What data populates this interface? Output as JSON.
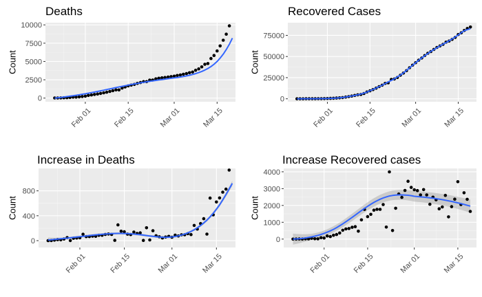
{
  "colors": {
    "panel_bg": "#ebebeb",
    "grid_major": "#ffffff",
    "grid_minor": "#f5f5f5",
    "point": "#000000",
    "smooth": "#3366ff",
    "ribbon": "#999999"
  },
  "chart_data": [
    {
      "type": "scatter",
      "title": "Deaths",
      "xlabel": "",
      "ylabel": "Count",
      "x_type": "date",
      "x_ticks": [
        "2020-02-01",
        "2020-02-15",
        "2020-03-01",
        "2020-03-15"
      ],
      "x_tick_labels": [
        "Feb 01",
        "Feb 15",
        "Mar 01",
        "Mar 15"
      ],
      "xlim": [
        "2020-01-19",
        "2020-03-21"
      ],
      "y_ticks": [
        0,
        2500,
        5000,
        7500,
        10000
      ],
      "ylim": [
        -500,
        10300
      ],
      "grid": true,
      "smooth": true,
      "x": [
        "2020-01-22",
        "2020-01-23",
        "2020-01-24",
        "2020-01-25",
        "2020-01-26",
        "2020-01-27",
        "2020-01-28",
        "2020-01-29",
        "2020-01-30",
        "2020-01-31",
        "2020-02-01",
        "2020-02-02",
        "2020-02-03",
        "2020-02-04",
        "2020-02-05",
        "2020-02-06",
        "2020-02-07",
        "2020-02-08",
        "2020-02-09",
        "2020-02-10",
        "2020-02-11",
        "2020-02-12",
        "2020-02-13",
        "2020-02-14",
        "2020-02-15",
        "2020-02-16",
        "2020-02-17",
        "2020-02-18",
        "2020-02-19",
        "2020-02-20",
        "2020-02-21",
        "2020-02-22",
        "2020-02-23",
        "2020-02-24",
        "2020-02-25",
        "2020-02-26",
        "2020-02-27",
        "2020-02-28",
        "2020-02-29",
        "2020-03-01",
        "2020-03-02",
        "2020-03-03",
        "2020-03-04",
        "2020-03-05",
        "2020-03-06",
        "2020-03-07",
        "2020-03-08",
        "2020-03-09",
        "2020-03-10",
        "2020-03-11",
        "2020-03-12",
        "2020-03-13",
        "2020-03-14",
        "2020-03-15",
        "2020-03-16",
        "2020-03-17",
        "2020-03-18",
        "2020-03-19"
      ],
      "y": [
        17,
        18,
        26,
        42,
        56,
        82,
        131,
        133,
        171,
        213,
        259,
        362,
        426,
        492,
        564,
        634,
        719,
        806,
        906,
        1013,
        1113,
        1118,
        1371,
        1523,
        1666,
        1770,
        1868,
        2007,
        2122,
        2247,
        2251,
        2458,
        2469,
        2629,
        2708,
        2770,
        2814,
        2872,
        2941,
        2996,
        3085,
        3160,
        3254,
        3348,
        3460,
        3558,
        3802,
        3988,
        4262,
        4615,
        4720,
        5404,
        5819,
        6440,
        7126,
        7905,
        8733,
        9867
      ],
      "smooth_y": [
        0,
        45,
        95,
        145,
        200,
        260,
        320,
        385,
        450,
        520,
        590,
        665,
        745,
        825,
        910,
        995,
        1080,
        1170,
        1255,
        1345,
        1435,
        1520,
        1605,
        1690,
        1775,
        1855,
        1935,
        2010,
        2085,
        2155,
        2225,
        2290,
        2355,
        2415,
        2475,
        2535,
        2590,
        2645,
        2700,
        2755,
        2815,
        2880,
        2950,
        3030,
        3120,
        3225,
        3345,
        3480,
        3640,
        3830,
        4050,
        4310,
        4620,
        5000,
        5460,
        6000,
        6630,
        7350,
        8200
      ]
    },
    {
      "type": "scatter",
      "title": "Recovered Cases",
      "xlabel": "",
      "ylabel": "Count",
      "x_type": "date",
      "x_ticks": [
        "2020-02-01",
        "2020-02-15",
        "2020-03-01",
        "2020-03-15"
      ],
      "x_tick_labels": [
        "Feb 01",
        "Feb 15",
        "Mar 01",
        "Mar 15"
      ],
      "xlim": [
        "2020-01-19",
        "2020-03-21"
      ],
      "y_ticks": [
        0,
        25000,
        50000,
        75000
      ],
      "ylim": [
        -3500,
        90000
      ],
      "grid": true,
      "smooth": true,
      "x": [
        "2020-01-22",
        "2020-01-23",
        "2020-01-24",
        "2020-01-25",
        "2020-01-26",
        "2020-01-27",
        "2020-01-28",
        "2020-01-29",
        "2020-01-30",
        "2020-01-31",
        "2020-02-01",
        "2020-02-02",
        "2020-02-03",
        "2020-02-04",
        "2020-02-05",
        "2020-02-06",
        "2020-02-07",
        "2020-02-08",
        "2020-02-09",
        "2020-02-10",
        "2020-02-11",
        "2020-02-12",
        "2020-02-13",
        "2020-02-14",
        "2020-02-15",
        "2020-02-16",
        "2020-02-17",
        "2020-02-18",
        "2020-02-19",
        "2020-02-20",
        "2020-02-21",
        "2020-02-22",
        "2020-02-23",
        "2020-02-24",
        "2020-02-25",
        "2020-02-26",
        "2020-02-27",
        "2020-02-28",
        "2020-02-29",
        "2020-03-01",
        "2020-03-02",
        "2020-03-03",
        "2020-03-04",
        "2020-03-05",
        "2020-03-06",
        "2020-03-07",
        "2020-03-08",
        "2020-03-09",
        "2020-03-10",
        "2020-03-11",
        "2020-03-12",
        "2020-03-13",
        "2020-03-14",
        "2020-03-15",
        "2020-03-16",
        "2020-03-17",
        "2020-03-18",
        "2020-03-19"
      ],
      "y": [
        28,
        30,
        36,
        39,
        52,
        61,
        107,
        126,
        143,
        222,
        284,
        472,
        623,
        852,
        1124,
        1487,
        2011,
        2616,
        3244,
        3946,
        4683,
        5150,
        6295,
        8058,
        9395,
        10865,
        12583,
        14352,
        16121,
        18177,
        18890,
        22886,
        23394,
        25227,
        27905,
        30384,
        33277,
        36711,
        39782,
        42716,
        45602,
        48228,
        51170,
        53796,
        55865,
        58358,
        60694,
        62494,
        64404,
        67003,
        68324,
        70251,
        72624,
        76034,
        78088,
        80840,
        83207,
        84854
      ]
    },
    {
      "type": "scatter",
      "title": "Increase in Deaths",
      "xlabel": "",
      "ylabel": "Count",
      "x_type": "date",
      "x_ticks": [
        "2020-02-01",
        "2020-02-15",
        "2020-03-01",
        "2020-03-15"
      ],
      "x_tick_labels": [
        "Feb 01",
        "Feb 15",
        "Mar 01",
        "Mar 15"
      ],
      "xlim": [
        "2020-01-19",
        "2020-03-21"
      ],
      "y_ticks": [
        0,
        400,
        800
      ],
      "ylim": [
        -110,
        1160
      ],
      "grid": true,
      "smooth": true,
      "ribbon": true,
      "x": [
        "2020-01-22",
        "2020-01-23",
        "2020-01-24",
        "2020-01-25",
        "2020-01-26",
        "2020-01-27",
        "2020-01-28",
        "2020-01-29",
        "2020-01-30",
        "2020-01-31",
        "2020-02-01",
        "2020-02-02",
        "2020-02-03",
        "2020-02-04",
        "2020-02-05",
        "2020-02-06",
        "2020-02-07",
        "2020-02-08",
        "2020-02-09",
        "2020-02-10",
        "2020-02-11",
        "2020-02-12",
        "2020-02-13",
        "2020-02-14",
        "2020-02-15",
        "2020-02-16",
        "2020-02-17",
        "2020-02-18",
        "2020-02-19",
        "2020-02-20",
        "2020-02-21",
        "2020-02-22",
        "2020-02-23",
        "2020-02-24",
        "2020-02-25",
        "2020-02-26",
        "2020-02-27",
        "2020-02-28",
        "2020-02-29",
        "2020-03-01",
        "2020-03-02",
        "2020-03-03",
        "2020-03-04",
        "2020-03-05",
        "2020-03-06",
        "2020-03-07",
        "2020-03-08",
        "2020-03-09",
        "2020-03-10",
        "2020-03-11",
        "2020-03-12",
        "2020-03-13",
        "2020-03-14",
        "2020-03-15",
        "2020-03-16",
        "2020-03-17",
        "2020-03-18",
        "2020-03-19"
      ],
      "y": [
        0,
        1,
        8,
        16,
        14,
        26,
        49,
        2,
        38,
        42,
        46,
        103,
        64,
        66,
        72,
        70,
        85,
        87,
        100,
        107,
        100,
        5,
        253,
        152,
        143,
        104,
        98,
        139,
        115,
        125,
        4,
        207,
        11,
        160,
        79,
        62,
        44,
        58,
        69,
        55,
        89,
        75,
        94,
        94,
        112,
        98,
        244,
        186,
        274,
        353,
        105,
        684,
        415,
        621,
        686,
        779,
        828,
        1134
      ],
      "smooth_y": [
        10,
        15,
        20,
        25,
        30,
        35,
        40,
        46,
        52,
        58,
        64,
        70,
        76,
        82,
        88,
        93,
        98,
        102,
        106,
        110,
        113,
        115,
        116,
        116,
        115,
        113,
        110,
        106,
        101,
        95,
        89,
        82,
        75,
        69,
        63,
        59,
        56,
        55,
        56,
        60,
        67,
        77,
        90,
        106,
        125,
        148,
        175,
        207,
        243,
        284,
        330,
        382,
        440,
        505,
        575,
        655,
        740,
        830,
        920
      ],
      "band_half": [
        40,
        33,
        27,
        22,
        19,
        17,
        16,
        16,
        16,
        16,
        17,
        17,
        17,
        17,
        17,
        17,
        17,
        17,
        17,
        17,
        17,
        17,
        17,
        17,
        17,
        17,
        17,
        17,
        17,
        17,
        17,
        17,
        17,
        17,
        17,
        17,
        17,
        17,
        17,
        17,
        17,
        17,
        17,
        17,
        17,
        18,
        19,
        20,
        21,
        22,
        23,
        24,
        25,
        26,
        28,
        30,
        33,
        37,
        42
      ]
    },
    {
      "type": "scatter",
      "title": "Increase Recovered cases",
      "xlabel": "",
      "ylabel": "Count",
      "x_type": "date",
      "x_ticks": [
        "2020-02-01",
        "2020-02-15",
        "2020-03-01",
        "2020-03-15"
      ],
      "x_tick_labels": [
        "Feb 01",
        "Feb 15",
        "Mar 01",
        "Mar 15"
      ],
      "xlim": [
        "2020-01-19",
        "2020-03-21"
      ],
      "y_ticks": [
        0,
        1000,
        2000,
        3000,
        4000
      ],
      "ylim": [
        -500,
        4200
      ],
      "grid": true,
      "smooth": true,
      "ribbon": true,
      "x": [
        "2020-01-22",
        "2020-01-23",
        "2020-01-24",
        "2020-01-25",
        "2020-01-26",
        "2020-01-27",
        "2020-01-28",
        "2020-01-29",
        "2020-01-30",
        "2020-01-31",
        "2020-02-01",
        "2020-02-02",
        "2020-02-03",
        "2020-02-04",
        "2020-02-05",
        "2020-02-06",
        "2020-02-07",
        "2020-02-08",
        "2020-02-09",
        "2020-02-10",
        "2020-02-11",
        "2020-02-12",
        "2020-02-13",
        "2020-02-14",
        "2020-02-15",
        "2020-02-16",
        "2020-02-17",
        "2020-02-18",
        "2020-02-19",
        "2020-02-20",
        "2020-02-21",
        "2020-02-22",
        "2020-02-23",
        "2020-02-24",
        "2020-02-25",
        "2020-02-26",
        "2020-02-27",
        "2020-02-28",
        "2020-02-29",
        "2020-03-01",
        "2020-03-02",
        "2020-03-03",
        "2020-03-04",
        "2020-03-05",
        "2020-03-06",
        "2020-03-07",
        "2020-03-08",
        "2020-03-09",
        "2020-03-10",
        "2020-03-11",
        "2020-03-12",
        "2020-03-13",
        "2020-03-14",
        "2020-03-15",
        "2020-03-16",
        "2020-03-17",
        "2020-03-18",
        "2020-03-19"
      ],
      "y": [
        0,
        2,
        6,
        3,
        13,
        9,
        46,
        19,
        17,
        79,
        62,
        188,
        151,
        229,
        272,
        363,
        524,
        605,
        628,
        702,
        737,
        467,
        1145,
        1763,
        1337,
        1470,
        1718,
        1769,
        1769,
        2056,
        713,
        3996,
        508,
        1833,
        2678,
        2479,
        2893,
        3434,
        3071,
        2934,
        2886,
        2626,
        2942,
        2626,
        2069,
        2493,
        2336,
        1800,
        1910,
        2599,
        1321,
        1927,
        2373,
        3410,
        2054,
        2752,
        2367,
        1647
      ],
      "smooth_y": [
        0,
        10,
        25,
        45,
        70,
        100,
        135,
        175,
        220,
        275,
        340,
        410,
        490,
        580,
        680,
        790,
        905,
        1030,
        1160,
        1290,
        1425,
        1560,
        1695,
        1825,
        1950,
        2070,
        2180,
        2280,
        2370,
        2445,
        2510,
        2560,
        2595,
        2615,
        2625,
        2625,
        2620,
        2605,
        2580,
        2545,
        2495,
        2430,
        2345,
        2240,
        2110,
        1960
      ],
      "smooth_x": [
        "2020-01-22",
        "2020-01-23",
        "2020-01-24",
        "2020-01-25",
        "2020-01-26",
        "2020-01-27",
        "2020-01-28",
        "2020-01-29",
        "2020-01-30",
        "2020-01-31",
        "2020-02-01",
        "2020-02-02",
        "2020-02-03",
        "2020-02-04",
        "2020-02-05",
        "2020-02-06",
        "2020-02-07",
        "2020-02-08",
        "2020-02-09",
        "2020-02-10",
        "2020-02-11",
        "2020-02-12",
        "2020-02-13",
        "2020-02-14",
        "2020-02-15",
        "2020-02-16",
        "2020-02-17",
        "2020-02-18",
        "2020-02-19",
        "2020-02-20",
        "2020-02-21",
        "2020-02-22",
        "2020-02-23",
        "2020-02-24",
        "2020-02-25",
        "2020-02-26",
        "2020-02-27",
        "2020-02-28",
        "2020-02-29",
        "2020-03-01",
        "2020-03-04",
        "2020-03-07",
        "2020-03-10",
        "2020-03-13",
        "2020-03-16",
        "2020-03-19"
      ],
      "band_half": [
        330,
        300,
        270,
        240,
        215,
        195,
        180,
        170,
        165,
        165,
        170,
        175,
        180,
        185,
        190,
        195,
        200,
        205,
        210,
        215,
        220,
        225,
        230,
        235,
        240,
        245,
        250,
        255,
        260,
        265,
        270,
        275,
        280,
        285,
        290,
        295,
        300,
        305,
        310,
        315,
        320,
        330,
        340,
        350,
        365,
        390
      ]
    }
  ]
}
